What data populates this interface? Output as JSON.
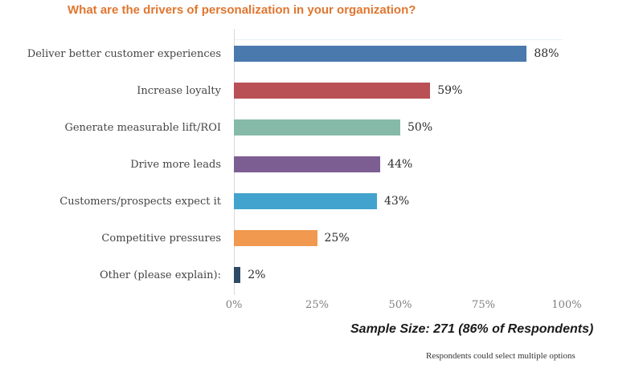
{
  "chart_data": {
    "type": "bar",
    "orientation": "horizontal",
    "title": "What are the drivers of personalization in your organization?",
    "categories": [
      "Deliver better customer experiences",
      "Increase loyalty",
      "Generate measurable lift/ROI",
      "Drive more leads",
      "Customers/prospects expect it",
      "Competitive pressures",
      "Other (please explain):"
    ],
    "values": [
      88,
      59,
      50,
      44,
      43,
      25,
      2
    ],
    "value_labels": [
      "88%",
      "59%",
      "50%",
      "44%",
      "43%",
      "25%",
      "2%"
    ],
    "colors": [
      "#4A79AD",
      "#B85056",
      "#85BAA8",
      "#7D5E92",
      "#42A3CE",
      "#F0994F",
      "#2E4B66"
    ],
    "value_suffix": "%",
    "xlim": [
      0,
      100
    ],
    "x_ticks": [
      "0%",
      "25%",
      "50%",
      "75%",
      "100%"
    ],
    "grid": "off",
    "legend": "none",
    "title_color": "#E0762F",
    "axis_line_color": "#D9D9D9"
  },
  "annotations": {
    "sample_size": "Sample Size: 271 (86% of Respondents)",
    "footnote": "Respondents could select multiple options"
  }
}
